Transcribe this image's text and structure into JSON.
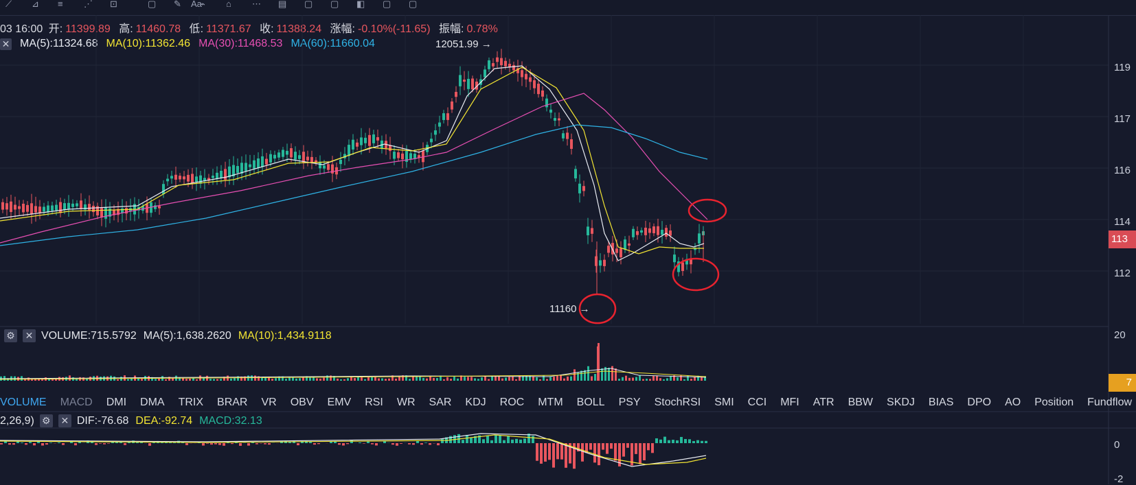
{
  "toolbar": {
    "icons": [
      "cursor-icon",
      "line-tool-icon",
      "fib-tool-icon",
      "pattern-tool-icon",
      "measure-tool-icon",
      "text-tool-icon",
      "brush-icon",
      "highlighter-icon",
      "eraser-icon",
      "path-tool-icon",
      "ruler-icon",
      "magnet-icon",
      "lock-icon",
      "layers-icon",
      "eye-icon",
      "trash-icon"
    ],
    "text_label": "Aa"
  },
  "price_info": {
    "time": "03 16:00",
    "open_label": "开:",
    "open": "11399.89",
    "high_label": "高:",
    "high": "11460.78",
    "low_label": "低:",
    "low": "11371.67",
    "close_label": "收:",
    "close": "11388.24",
    "change_label": "涨幅:",
    "change": "-0.10%(-11.65)",
    "amplitude_label": "振幅:",
    "amplitude": "0.78%"
  },
  "ma": {
    "close_glyph": "✕",
    "ma5": "MA(5):11324.68",
    "ma10": "MA(10):11362.46",
    "ma30": "MA(30):11468.53",
    "ma60": "MA(60):11660.04",
    "colors": {
      "ma5": "#e9ecf3",
      "ma10": "#f3e533",
      "ma30": "#e74fb3",
      "ma60": "#2fb3e6"
    }
  },
  "annotations": {
    "high_label": "12051.99",
    "low_label": "11160",
    "arrow": "→"
  },
  "price_axis": {
    "ticks": [
      "119",
      "117",
      "116",
      "114",
      "112"
    ],
    "current_tag": "113",
    "current_tag_color": "#d94c55"
  },
  "volume": {
    "gear": "⚙",
    "close_glyph": "✕",
    "label": "VOLUME:715.5792",
    "ma5": "MA(5):1,638.2620",
    "ma10": "MA(10):1,434.9118",
    "axis_top": "20",
    "axis_tag": "7",
    "axis_tag_color": "#e6a020"
  },
  "indicator_tabs": [
    "VOLUME",
    "MACD",
    "DMI",
    "DMA",
    "TRIX",
    "BRAR",
    "VR",
    "OBV",
    "EMV",
    "RSI",
    "WR",
    "SAR",
    "KDJ",
    "ROC",
    "MTM",
    "BOLL",
    "PSY",
    "StochRSI",
    "SMI",
    "CCI",
    "MFI",
    "ATR",
    "BBW",
    "SKDJ",
    "BIAS",
    "DPO",
    "AO",
    "Position",
    "Fundflow"
  ],
  "active_tab": "VOLUME",
  "macd": {
    "params": "2,26,9)",
    "gear": "⚙",
    "close_glyph": "✕",
    "dif": "DIF:-76.68",
    "dea": "DEA:-92.74",
    "macd": "MACD:32.13",
    "axis_zero": "0",
    "axis_bottom": "-2"
  },
  "colors": {
    "up": "#26b89a",
    "down": "#e8565e",
    "bg": "#161a2b",
    "grid": "#252a3d",
    "circle": "#e8232f"
  }
}
